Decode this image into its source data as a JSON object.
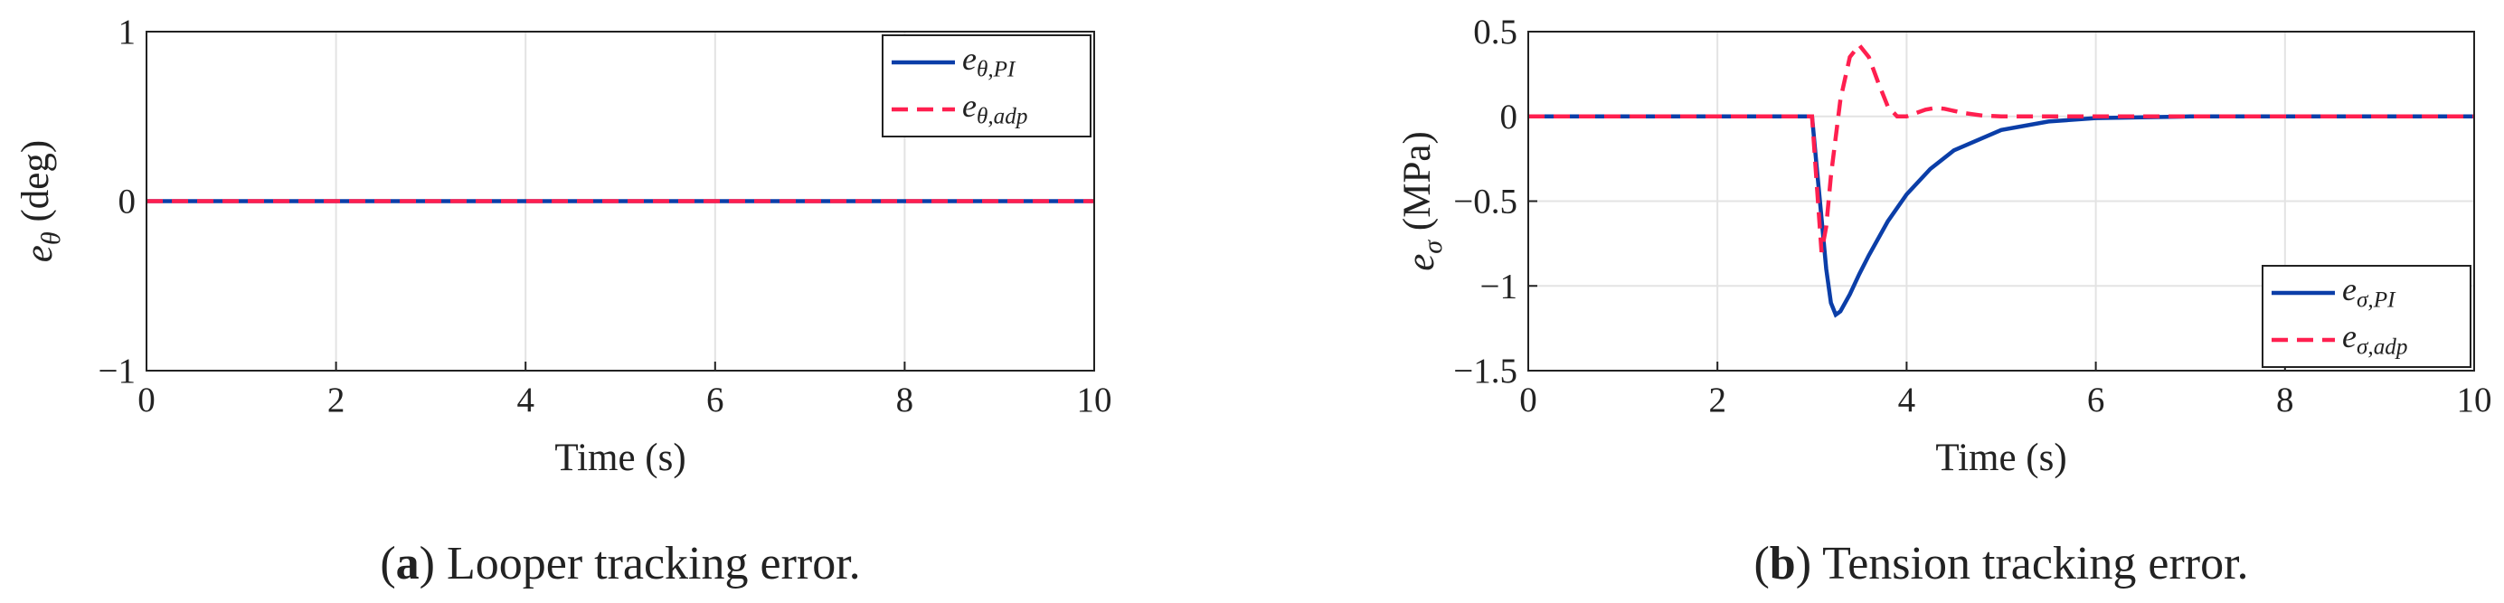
{
  "chart_data": [
    {
      "type": "line",
      "xlabel": "Time (s)",
      "ylabel": "eθ (deg)",
      "caption": "(a) Looper tracking error.",
      "xlim": [
        0,
        10
      ],
      "xticks": [
        0,
        2,
        4,
        6,
        8,
        10
      ],
      "ylim": [
        -1,
        1
      ],
      "yticks": [
        {
          "value": -1,
          "label": "−1"
        },
        0,
        1
      ],
      "grid": true,
      "legend": "northeast",
      "series": [
        {
          "name": "eθ,PI",
          "color": "#0b3ea8",
          "dash": false,
          "x": [
            0,
            10
          ],
          "values": [
            0,
            0
          ]
        },
        {
          "name": "eθ,adp",
          "color": "#ff1f4f",
          "dash": true,
          "x": [
            0,
            10
          ],
          "values": [
            0,
            0
          ]
        }
      ]
    },
    {
      "type": "line",
      "xlabel": "Time (s)",
      "ylabel": "eσ (MPa)",
      "caption": "(b) Tension tracking error.",
      "xlim": [
        0,
        10
      ],
      "xticks": [
        0,
        2,
        4,
        6,
        8,
        10
      ],
      "ylim": [
        -1.5,
        0.5
      ],
      "yticks": [
        {
          "value": -1.5,
          "label": "−1.5"
        },
        {
          "value": -1,
          "label": "−1"
        },
        {
          "value": -0.5,
          "label": "−0.5"
        },
        0,
        0.5
      ],
      "grid": true,
      "legend": "southeast",
      "series": [
        {
          "name": "eσ,PI",
          "color": "#0b3ea8",
          "dash": false,
          "x": [
            0,
            3,
            3.05,
            3.1,
            3.15,
            3.2,
            3.25,
            3.3,
            3.4,
            3.5,
            3.6,
            3.8,
            4,
            4.25,
            4.5,
            5,
            5.5,
            6,
            7,
            10
          ],
          "values": [
            0,
            0,
            -0.3,
            -0.6,
            -0.9,
            -1.1,
            -1.17,
            -1.15,
            -1.05,
            -0.93,
            -0.82,
            -0.62,
            -0.46,
            -0.31,
            -0.2,
            -0.08,
            -0.03,
            -0.01,
            0,
            0
          ]
        },
        {
          "name": "eσ,adp",
          "color": "#ff1f4f",
          "dash": true,
          "x": [
            0,
            3,
            3.05,
            3.1,
            3.15,
            3.2,
            3.3,
            3.4,
            3.5,
            3.6,
            3.7,
            3.8,
            3.9,
            4,
            4.1,
            4.2,
            4.3,
            4.4,
            4.6,
            4.8,
            5,
            6,
            10
          ],
          "values": [
            0,
            0,
            -0.4,
            -0.8,
            -0.65,
            -0.35,
            0.1,
            0.35,
            0.42,
            0.35,
            0.2,
            0.06,
            0,
            0,
            0.02,
            0.04,
            0.05,
            0.045,
            0.02,
            0.005,
            0,
            0,
            0
          ]
        }
      ]
    }
  ]
}
